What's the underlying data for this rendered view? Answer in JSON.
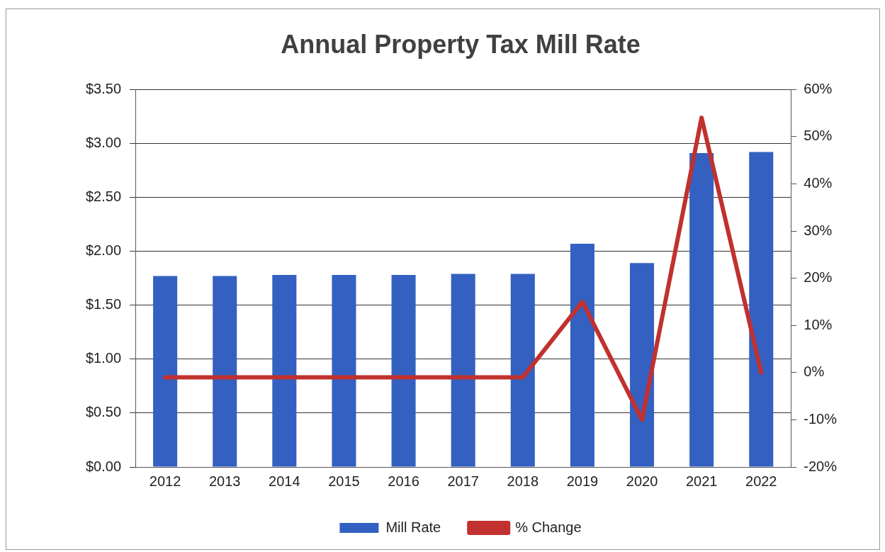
{
  "chart_data": {
    "type": "bar",
    "title": "Annual Property Tax Mill Rate",
    "categories": [
      "2012",
      "2013",
      "2014",
      "2015",
      "2016",
      "2017",
      "2018",
      "2019",
      "2020",
      "2021",
      "2022"
    ],
    "series": [
      {
        "name": "Mill Rate",
        "color": "#3461c1",
        "values": [
          1.77,
          1.77,
          1.78,
          1.78,
          1.78,
          1.79,
          1.79,
          2.07,
          1.89,
          2.91,
          2.92
        ]
      },
      {
        "name": "% Change",
        "type": "line",
        "axis": "y2",
        "color": "#c0312f",
        "values": [
          -1,
          -1,
          -1,
          -1,
          -1,
          -1,
          -1,
          15,
          -10,
          54,
          0
        ]
      }
    ],
    "ylim": [
      0,
      3.5
    ],
    "yticks": [
      {
        "value": 0,
        "label": "$0.00"
      },
      {
        "value": 0.5,
        "label": "$0.50"
      },
      {
        "value": 1,
        "label": "$1.00"
      },
      {
        "value": 1.5,
        "label": "$1.50"
      },
      {
        "value": 2,
        "label": "$2.00"
      },
      {
        "value": 2.5,
        "label": "$2.50"
      },
      {
        "value": 3,
        "label": "$3.00"
      },
      {
        "value": 3.5,
        "label": "$3.50"
      }
    ],
    "y2lim": [
      -20,
      60
    ],
    "y2ticks": [
      {
        "value": -20,
        "label": "-20%"
      },
      {
        "value": -10,
        "label": "-10%"
      },
      {
        "value": 0,
        "label": "0%"
      },
      {
        "value": 10,
        "label": "10%"
      },
      {
        "value": 20,
        "label": "20%"
      },
      {
        "value": 30,
        "label": "30%"
      },
      {
        "value": 40,
        "label": "40%"
      },
      {
        "value": 50,
        "label": "50%"
      },
      {
        "value": 60,
        "label": "60%"
      }
    ],
    "grid": "y",
    "legend": "bottom",
    "marker": "none"
  }
}
